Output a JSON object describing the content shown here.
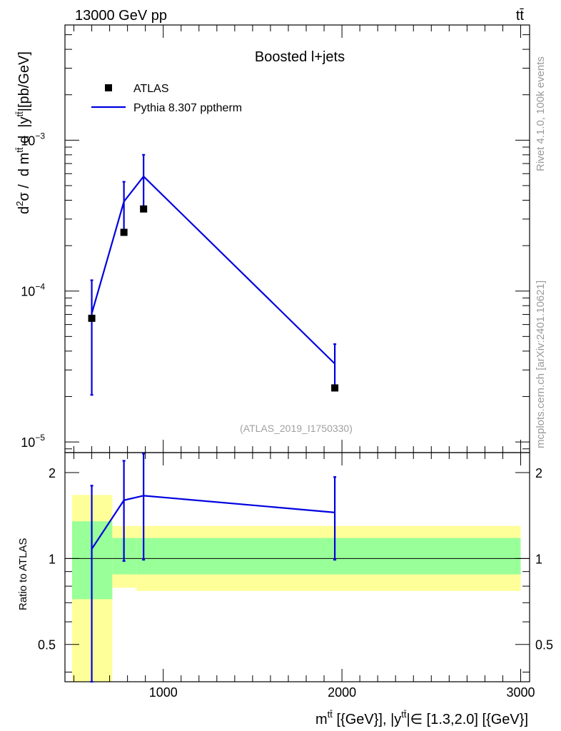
{
  "header": {
    "left": "13000 GeV pp",
    "right": "tt̄"
  },
  "side_labels": {
    "rivet": "Rivet 4.1.0,  100k events",
    "source": "mcplots.cern.ch [arXiv:2401.10621]"
  },
  "chart_data": [
    {
      "type": "line",
      "panel": "main",
      "title": "Boosted l+jets",
      "watermark": "(ATLAS_2019_I1750330)",
      "ylabel": "d²σ / d m^tt̄ d |y^tt̄|[pb/GeV]",
      "yscale": "log",
      "xlim": [
        450,
        3050
      ],
      "ylim": [
        8.5e-06,
        0.0058
      ],
      "yticks": [
        {
          "value": 1e-05,
          "base": "10",
          "exp": "−5"
        },
        {
          "value": 0.0001,
          "base": "10",
          "exp": "−4"
        },
        {
          "value": 0.001,
          "base": "10",
          "exp": "−3"
        }
      ],
      "legend": [
        {
          "label": "ATLAS",
          "style": "marker"
        },
        {
          "label": "Pythia 8.307 pptherm",
          "style": "line"
        }
      ],
      "series": [
        {
          "name": "ATLAS",
          "color": "#000000",
          "points": [
            {
              "x": 600,
              "y": 6.6e-05
            },
            {
              "x": 780,
              "y": 0.000245
            },
            {
              "x": 890,
              "y": 0.00035
            },
            {
              "x": 1960,
              "y": 2.28e-05
            }
          ]
        },
        {
          "name": "Pythia 8.307 pptherm",
          "color": "#0000e0",
          "points": [
            {
              "x": 600,
              "y": 7.1e-05,
              "ylo": 2.05e-05,
              "yhi": 0.000118
            },
            {
              "x": 780,
              "y": 0.000392,
              "ylo": 0.000245,
              "yhi": 0.00053
            },
            {
              "x": 890,
              "y": 0.000575,
              "ylo": 0.00035,
              "yhi": 0.0008
            },
            {
              "x": 1960,
              "y": 3.3e-05,
              "ylo": 2.28e-05,
              "yhi": 4.45e-05
            }
          ]
        }
      ]
    },
    {
      "type": "line",
      "panel": "ratio",
      "ylabel": "Ratio to ATLAS",
      "xlabel": "m^tt̄ [{GeV}], |y^tt̄|∈ [1.3,2.0] [{GeV}]",
      "yscale": "log",
      "xlim": [
        450,
        3050
      ],
      "ylim": [
        0.37,
        2.35
      ],
      "xticks": [
        {
          "value": 1000,
          "label": "1000"
        },
        {
          "value": 2000,
          "label": "2000"
        },
        {
          "value": 3000,
          "label": "3000"
        }
      ],
      "yticks": [
        {
          "value": 0.5,
          "label": "0.5"
        },
        {
          "value": 1,
          "label": "1"
        },
        {
          "value": 2,
          "label": "2"
        }
      ],
      "bands": [
        {
          "x0": 490,
          "x1": 715,
          "yellow": [
            0.35,
            1.67
          ],
          "green": [
            0.72,
            1.35
          ]
        },
        {
          "x0": 715,
          "x1": 850,
          "yellow": [
            0.79,
            1.3
          ],
          "green": [
            0.88,
            1.18
          ]
        },
        {
          "x0": 850,
          "x1": 3000,
          "yellow": [
            0.77,
            1.3
          ],
          "green": [
            0.88,
            1.18
          ]
        }
      ],
      "series": [
        {
          "name": "Pythia 8.307 pptherm / ATLAS",
          "color": "#0000e0",
          "points": [
            {
              "x": 600,
              "y": 1.08,
              "ylo": 0.35,
              "yhi": 1.8
            },
            {
              "x": 780,
              "y": 1.6,
              "ylo": 0.98,
              "yhi": 2.2
            },
            {
              "x": 890,
              "y": 1.66,
              "ylo": 0.99,
              "yhi": 2.33
            },
            {
              "x": 1960,
              "y": 1.45,
              "ylo": 0.99,
              "yhi": 1.93
            }
          ]
        }
      ]
    }
  ]
}
